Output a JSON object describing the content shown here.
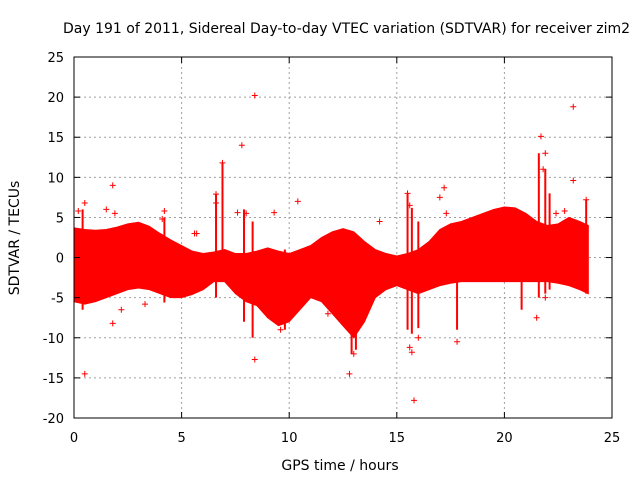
{
  "chart_data": {
    "type": "scatter",
    "title": "Day 191 of 2011, Sidereal Day-to-day VTEC variation (SDTVAR) for receiver zim2",
    "xlabel": "GPS time / hours",
    "ylabel": "SDTVAR / TECUs",
    "xlim": [
      0,
      25
    ],
    "ylim": [
      -20,
      25
    ],
    "x_ticks": [
      0,
      5,
      10,
      15,
      20,
      25
    ],
    "y_ticks": [
      -20,
      -15,
      -10,
      -5,
      0,
      5,
      10,
      15,
      20,
      25
    ],
    "x_tick_labels": [
      "0",
      "5",
      "10",
      "15",
      "20",
      "25"
    ],
    "y_tick_labels": [
      "-20",
      "-15",
      "-10",
      "-5",
      "0",
      "5",
      "10",
      "15",
      "20",
      "25"
    ],
    "grid": true,
    "marker": "+",
    "series_color": "#ff0000",
    "band_envelope": {
      "x": [
        0,
        0.5,
        1,
        1.5,
        2,
        2.5,
        3,
        3.5,
        4,
        4.5,
        5,
        5.5,
        6,
        6.5,
        7,
        7.5,
        8,
        8.5,
        9,
        9.5,
        10,
        10.5,
        11,
        11.5,
        12,
        12.5,
        13,
        13.5,
        14,
        14.5,
        15,
        15.5,
        16,
        16.5,
        17,
        17.5,
        18,
        18.5,
        19,
        19.5,
        20,
        20.5,
        21,
        21.5,
        22,
        22.5,
        23,
        23.5,
        23.9
      ],
      "upper": [
        3.7,
        3.5,
        3.4,
        3.5,
        3.8,
        4.2,
        4.4,
        3.9,
        3.0,
        2.2,
        1.5,
        0.8,
        0.5,
        0.7,
        1.0,
        0.5,
        0.5,
        0.8,
        1.2,
        0.8,
        0.5,
        1.0,
        1.5,
        2.5,
        3.2,
        3.6,
        3.2,
        2.0,
        1.0,
        0.5,
        0.2,
        0.5,
        1.0,
        2.0,
        3.5,
        4.2,
        4.5,
        5.0,
        5.5,
        6.0,
        6.3,
        6.2,
        5.5,
        4.5,
        4.0,
        4.2,
        5.0,
        4.5,
        4.0
      ],
      "lower": [
        -5.5,
        -5.8,
        -5.5,
        -5.0,
        -4.5,
        -4.0,
        -3.8,
        -4.0,
        -4.5,
        -5.0,
        -5.0,
        -4.6,
        -4.0,
        -3.0,
        -3.0,
        -4.5,
        -5.5,
        -6.0,
        -7.5,
        -8.5,
        -8.0,
        -6.5,
        -5.0,
        -5.5,
        -7.0,
        -8.5,
        -10.0,
        -8.0,
        -5.0,
        -4.0,
        -3.5,
        -4.0,
        -4.5,
        -4.0,
        -3.5,
        -3.2,
        -3.0,
        -3.0,
        -3.0,
        -3.0,
        -3.0,
        -3.0,
        -3.0,
        -3.0,
        -3.0,
        -3.2,
        -3.5,
        -4.0,
        -4.5
      ]
    },
    "outliers": [
      {
        "x": 0.5,
        "y": -14.5
      },
      {
        "x": 0.5,
        "y": 6.8
      },
      {
        "x": 0.2,
        "y": 5.8
      },
      {
        "x": 1.5,
        "y": 6.0
      },
      {
        "x": 1.8,
        "y": 9.0
      },
      {
        "x": 1.8,
        "y": -8.2
      },
      {
        "x": 1.9,
        "y": 5.5
      },
      {
        "x": 4.2,
        "y": 5.8
      },
      {
        "x": 4.1,
        "y": 4.8
      },
      {
        "x": 5.6,
        "y": 3.0
      },
      {
        "x": 5.7,
        "y": 3.0
      },
      {
        "x": 6.6,
        "y": 7.9
      },
      {
        "x": 6.6,
        "y": 6.8
      },
      {
        "x": 6.9,
        "y": 11.8
      },
      {
        "x": 7.6,
        "y": 5.6
      },
      {
        "x": 7.8,
        "y": 14.0
      },
      {
        "x": 8.0,
        "y": 5.5
      },
      {
        "x": 8.4,
        "y": 20.2
      },
      {
        "x": 8.4,
        "y": -12.7
      },
      {
        "x": 9.3,
        "y": 5.6
      },
      {
        "x": 10.4,
        "y": 7.0
      },
      {
        "x": 12.8,
        "y": -14.5
      },
      {
        "x": 13.0,
        "y": -12.0
      },
      {
        "x": 14.2,
        "y": 4.5
      },
      {
        "x": 15.5,
        "y": 8.0
      },
      {
        "x": 15.6,
        "y": -11.2
      },
      {
        "x": 15.6,
        "y": 6.5
      },
      {
        "x": 15.8,
        "y": -17.8
      },
      {
        "x": 15.7,
        "y": -11.8
      },
      {
        "x": 17.0,
        "y": 7.5
      },
      {
        "x": 17.2,
        "y": 8.7
      },
      {
        "x": 17.3,
        "y": 5.5
      },
      {
        "x": 21.5,
        "y": -7.5
      },
      {
        "x": 21.7,
        "y": 15.1
      },
      {
        "x": 21.9,
        "y": 13.0
      },
      {
        "x": 21.8,
        "y": 11.0
      },
      {
        "x": 22.4,
        "y": 5.5
      },
      {
        "x": 22.8,
        "y": 5.8
      },
      {
        "x": 23.2,
        "y": 9.6
      },
      {
        "x": 23.2,
        "y": 18.8
      },
      {
        "x": 23.8,
        "y": 7.2
      },
      {
        "x": 21.9,
        "y": -5.0
      },
      {
        "x": 17.8,
        "y": -10.5
      },
      {
        "x": 16.0,
        "y": -10.0
      },
      {
        "x": 9.6,
        "y": -9.0
      },
      {
        "x": 11.8,
        "y": -7.0
      },
      {
        "x": 2.2,
        "y": -6.5
      },
      {
        "x": 3.3,
        "y": -5.8
      }
    ],
    "spikes": [
      {
        "x": 6.9,
        "lo": -3.0,
        "hi": 11.8
      },
      {
        "x": 6.6,
        "lo": -5.0,
        "hi": 7.9
      },
      {
        "x": 7.9,
        "lo": -8.0,
        "hi": 6.0
      },
      {
        "x": 8.3,
        "lo": -10.0,
        "hi": 4.5
      },
      {
        "x": 15.5,
        "lo": -9.0,
        "hi": 8.0
      },
      {
        "x": 15.7,
        "lo": -9.5,
        "hi": 6.2
      },
      {
        "x": 16.0,
        "lo": -8.8,
        "hi": 4.5
      },
      {
        "x": 21.6,
        "lo": -5.0,
        "hi": 13.0
      },
      {
        "x": 21.9,
        "lo": -4.5,
        "hi": 11.0
      },
      {
        "x": 22.1,
        "lo": -4.0,
        "hi": 8.0
      },
      {
        "x": 23.8,
        "lo": -4.5,
        "hi": 7.2
      },
      {
        "x": 12.9,
        "lo": -12.0,
        "hi": 2.0
      },
      {
        "x": 13.1,
        "lo": -11.5,
        "hi": 1.5
      },
      {
        "x": 0.4,
        "lo": -6.5,
        "hi": 6.0
      },
      {
        "x": 4.2,
        "lo": -5.6,
        "hi": 5.0
      },
      {
        "x": 9.8,
        "lo": -9.0,
        "hi": 1.0
      },
      {
        "x": 17.8,
        "lo": -9.0,
        "hi": 4.0
      },
      {
        "x": 20.8,
        "lo": -6.5,
        "hi": 5.5
      }
    ]
  }
}
